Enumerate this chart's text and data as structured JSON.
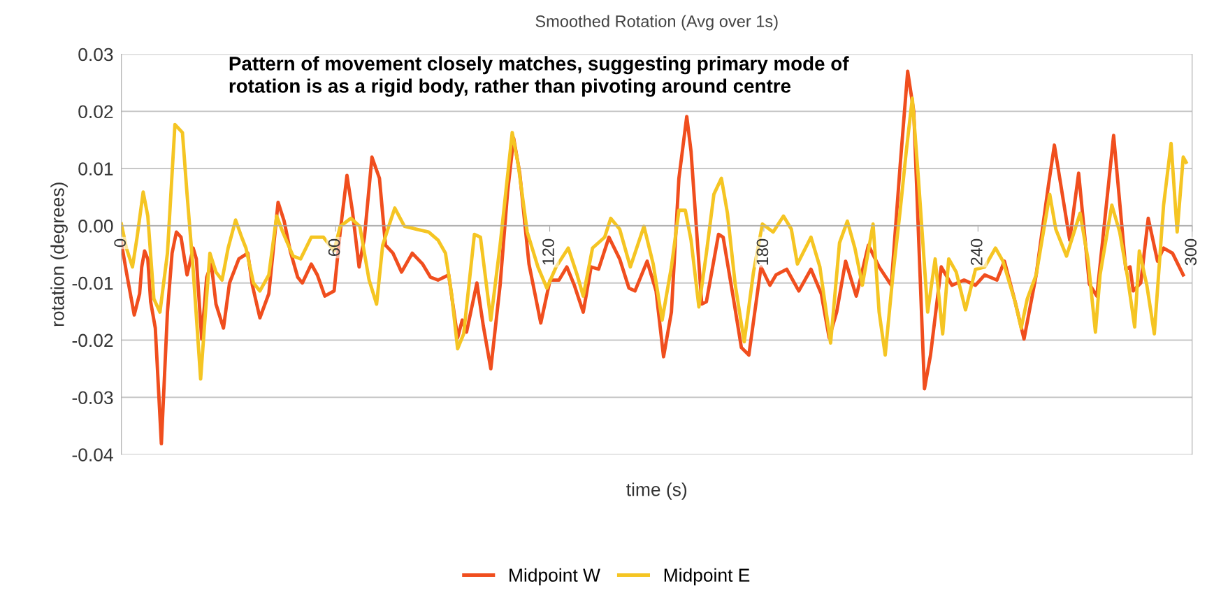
{
  "chart_data": {
    "type": "line",
    "title": "Smoothed Rotation (Avg over 1s)",
    "xlabel": "time (s)",
    "ylabel": "rotation (degrees)",
    "annotations": [
      "Pattern of movement closely matches, suggesting primary mode of rotation is as a rigid body, rather than pivoting around centre"
    ],
    "xlim": [
      0,
      300
    ],
    "xticks": [
      0,
      60,
      120,
      180,
      240,
      300
    ],
    "ylim": [
      -0.04,
      0.03
    ],
    "yticks": [
      {
        "value": -0.04,
        "label": "-0.04"
      },
      {
        "value": -0.03,
        "label": "-0.03"
      },
      {
        "value": -0.02,
        "label": "-0.02"
      },
      {
        "value": -0.01,
        "label": "-0.01"
      },
      {
        "value": 0,
        "label": "0.00"
      },
      {
        "value": 0.01,
        "label": "0.01"
      },
      {
        "value": 0.02,
        "label": "0.02"
      },
      {
        "value": 0.03,
        "label": "0.03"
      }
    ],
    "grid": "y",
    "legend": "bottom",
    "marker": "none",
    "line_style": "solid",
    "series": [
      {
        "name": "Midpoint W",
        "color": "#f04e1e",
        "x": [
          0,
          1.4,
          3.6,
          5.1,
          5.7,
          6.5,
          7.4,
          8.2,
          9.5,
          11.2,
          12.9,
          14.2,
          15.4,
          16.7,
          18.4,
          20.1,
          21,
          22.5,
          23.9,
          25.2,
          26.5,
          28.6,
          30.3,
          32.9,
          35.4,
          36.7,
          38.8,
          41.3,
          43.9,
          45.6,
          47.3,
          49.4,
          50.7,
          53.2,
          54.9,
          57,
          59.6,
          61.3,
          63.2,
          64.7,
          66.6,
          68.1,
          70.2,
          72.3,
          74,
          76.1,
          78.5,
          81.5,
          84.4,
          86.6,
          88.7,
          91.7,
          94.2,
          95.5,
          96.7,
          99.6,
          101.4,
          103.5,
          106.1,
          108.2,
          109.9,
          111.6,
          114.2,
          117.5,
          120.1,
          122.6,
          124.8,
          126.9,
          129.4,
          131.6,
          133.7,
          136.6,
          139.6,
          142.2,
          143.9,
          147.3,
          149.8,
          151.9,
          154.1,
          156.2,
          158.4,
          159.6,
          162.6,
          163.9,
          167.3,
          168.6,
          171.5,
          173.7,
          175.8,
          179.2,
          181.7,
          183.4,
          186.4,
          189.8,
          193.2,
          196.1,
          198.3,
          200.4,
          202.9,
          205.9,
          209.3,
          212.3,
          215.7,
          218.2,
          220.3,
          222,
          225,
          226.7,
          229.7,
          232.7,
          236.1,
          239.3,
          241.9,
          245.3,
          247.4,
          250.4,
          252.9,
          256.3,
          259.7,
          261.4,
          265.7,
          268.2,
          271.2,
          273.3,
          278,
          281.4,
          282.6,
          283.5,
          285.6,
          287.7,
          290.3,
          292,
          294.5,
          297.5
        ],
        "values": [
          -0.003,
          -0.0081,
          -0.0156,
          -0.0119,
          -0.0072,
          -0.0044,
          -0.0058,
          -0.0133,
          -0.0179,
          -0.0381,
          -0.0151,
          -0.0048,
          -0.0011,
          -0.002,
          -0.0086,
          -0.0039,
          -0.0058,
          -0.0198,
          -0.009,
          -0.0067,
          -0.0137,
          -0.0179,
          -0.01,
          -0.0058,
          -0.0048,
          -0.0104,
          -0.0161,
          -0.0119,
          0.0041,
          0.0008,
          -0.0044,
          -0.009,
          -0.01,
          -0.0067,
          -0.0086,
          -0.0123,
          -0.0114,
          -0.0011,
          0.0088,
          0.0027,
          -0.0072,
          -0.002,
          0.012,
          0.0083,
          -0.0034,
          -0.0048,
          -0.0081,
          -0.0048,
          -0.0067,
          -0.009,
          -0.0095,
          -0.0086,
          -0.0196,
          -0.0165,
          -0.0186,
          -0.01,
          -0.0175,
          -0.025,
          -0.0104,
          0.0059,
          0.0153,
          0.0092,
          -0.0067,
          -0.017,
          -0.0095,
          -0.0095,
          -0.0072,
          -0.0104,
          -0.0151,
          -0.0072,
          -0.0076,
          -0.002,
          -0.0058,
          -0.0109,
          -0.0114,
          -0.0062,
          -0.0114,
          -0.0229,
          -0.0151,
          0.0083,
          0.0191,
          0.013,
          -0.0137,
          -0.0133,
          -0.0015,
          -0.002,
          -0.0128,
          -0.0213,
          -0.0226,
          -0.0072,
          -0.0104,
          -0.0086,
          -0.0076,
          -0.0114,
          -0.0076,
          -0.0119,
          -0.0196,
          -0.0151,
          -0.0062,
          -0.0123,
          -0.0034,
          -0.0072,
          -0.0104,
          0.0106,
          0.027,
          0.02,
          -0.0285,
          -0.0226,
          -0.0072,
          -0.0104,
          -0.0095,
          -0.0104,
          -0.0086,
          -0.0095,
          -0.0062,
          -0.0133,
          -0.0198,
          -0.0086,
          0.0069,
          0.0141,
          -0.0025,
          0.0092,
          -0.0102,
          -0.0123,
          0.0158,
          -0.0076,
          -0.0072,
          -0.0114,
          -0.01,
          0.0013,
          -0.0062,
          -0.0039,
          -0.0048,
          -0.0086
        ]
      },
      {
        "name": "Midpoint E",
        "color": "#f5c523",
        "x": [
          0,
          1.4,
          3.1,
          4.4,
          6.1,
          7.4,
          9.1,
          10.8,
          12.9,
          15,
          17.1,
          18.4,
          20.1,
          22.2,
          23.5,
          24.8,
          26.5,
          28.2,
          29.9,
          32,
          33.7,
          34.9,
          37,
          38.8,
          41.3,
          43.5,
          45.2,
          48.1,
          50.2,
          53.2,
          56.6,
          59.6,
          61.3,
          64.3,
          66.8,
          69.4,
          71.5,
          73.2,
          74.9,
          76.6,
          79.3,
          82.7,
          86.1,
          88.7,
          90.8,
          92.5,
          94.2,
          95.9,
          98.9,
          100.6,
          103.5,
          106.1,
          109.5,
          111.2,
          113.7,
          116.7,
          119.2,
          121.8,
          125.2,
          127.7,
          129.4,
          132,
          135.4,
          137.1,
          139.6,
          142.6,
          146.4,
          149,
          151.5,
          154.1,
          156.2,
          158,
          159.6,
          161.8,
          163.9,
          166,
          168.1,
          169.8,
          172,
          174.5,
          177.1,
          179.6,
          182.6,
          185.5,
          187.7,
          189.4,
          193.2,
          195.7,
          198.7,
          201.2,
          203.4,
          205.5,
          207.6,
          210.6,
          212.3,
          214,
          216.1,
          218.2,
          219.9,
          221.6,
          223.3,
          225.9,
          228,
          230.1,
          231.8,
          233.9,
          236.5,
          239.3,
          241.9,
          244.9,
          247,
          250.4,
          252.1,
          253.8,
          256.3,
          260.1,
          261.8,
          264.8,
          268.6,
          270.8,
          272.9,
          274.2,
          277.5,
          279.7,
          281.8,
          283.9,
          285.2,
          287.3,
          289.4,
          292,
          294.1,
          295.8,
          297.5,
          298.3
        ],
        "values": [
          0.0003,
          -0.0039,
          -0.0072,
          -0.002,
          0.0059,
          0.0017,
          -0.0128,
          -0.0151,
          -0.0048,
          0.0177,
          0.0163,
          0.0055,
          -0.0076,
          -0.0268,
          -0.0156,
          -0.0048,
          -0.0081,
          -0.0095,
          -0.0039,
          0.001,
          -0.002,
          -0.0039,
          -0.01,
          -0.0114,
          -0.0086,
          0.0017,
          -0.0011,
          -0.0053,
          -0.0058,
          -0.002,
          -0.002,
          -0.0044,
          -0.0001,
          0.0013,
          -0.0001,
          -0.0095,
          -0.0137,
          -0.0034,
          -0.0001,
          0.0031,
          -0.0001,
          -0.0006,
          -0.0011,
          -0.0025,
          -0.0048,
          -0.0119,
          -0.0215,
          -0.0189,
          -0.0015,
          -0.002,
          -0.0165,
          -0.0034,
          0.0163,
          0.0106,
          -0.0011,
          -0.0072,
          -0.0109,
          -0.0072,
          -0.0039,
          -0.0086,
          -0.0123,
          -0.0039,
          -0.002,
          0.0013,
          -0.0006,
          -0.0072,
          -0.0001,
          -0.0067,
          -0.0165,
          -0.0072,
          0.0027,
          0.0027,
          -0.0025,
          -0.0142,
          -0.0048,
          0.0055,
          0.0083,
          0.0022,
          -0.0104,
          -0.0203,
          -0.0081,
          0.0003,
          -0.0011,
          0.0017,
          -0.0006,
          -0.0067,
          -0.002,
          -0.0072,
          -0.0205,
          -0.003,
          0.0008,
          -0.0039,
          -0.0104,
          0.0003,
          -0.0151,
          -0.0226,
          -0.009,
          0.0027,
          0.013,
          0.0223,
          0.0083,
          -0.0151,
          -0.0058,
          -0.0189,
          -0.0058,
          -0.0081,
          -0.0147,
          -0.0076,
          -0.0072,
          -0.0039,
          -0.0062,
          -0.0133,
          -0.0179,
          -0.0128,
          -0.0086,
          0.0055,
          -0.0006,
          -0.0053,
          0.0022,
          -0.0058,
          -0.0186,
          -0.0086,
          0.0036,
          -0.0011,
          -0.0086,
          -0.0177,
          -0.0044,
          -0.0104,
          -0.0189,
          0.0036,
          0.0144,
          -0.0011,
          0.012,
          0.0111
        ]
      }
    ]
  }
}
